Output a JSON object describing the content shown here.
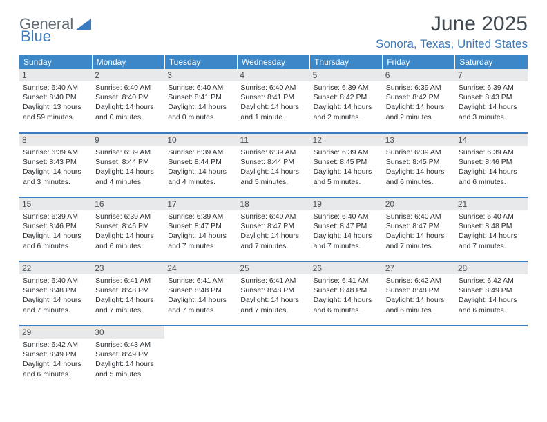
{
  "brand": {
    "part1": "General",
    "part2": "Blue"
  },
  "title": {
    "month": "June 2025",
    "location": "Sonora, Texas, United States"
  },
  "colors": {
    "header_bg": "#3b87c8",
    "accent": "#3b7bbf",
    "daynum_bg": "#e7e9eb",
    "text": "#2a2e32",
    "logo_gray": "#5f6a72"
  },
  "weekdays": [
    "Sunday",
    "Monday",
    "Tuesday",
    "Wednesday",
    "Thursday",
    "Friday",
    "Saturday"
  ],
  "weeks": [
    [
      {
        "n": "1",
        "sr": "6:40 AM",
        "ss": "8:40 PM",
        "dl": "13 hours and 59 minutes."
      },
      {
        "n": "2",
        "sr": "6:40 AM",
        "ss": "8:40 PM",
        "dl": "14 hours and 0 minutes."
      },
      {
        "n": "3",
        "sr": "6:40 AM",
        "ss": "8:41 PM",
        "dl": "14 hours and 0 minutes."
      },
      {
        "n": "4",
        "sr": "6:40 AM",
        "ss": "8:41 PM",
        "dl": "14 hours and 1 minute."
      },
      {
        "n": "5",
        "sr": "6:39 AM",
        "ss": "8:42 PM",
        "dl": "14 hours and 2 minutes."
      },
      {
        "n": "6",
        "sr": "6:39 AM",
        "ss": "8:42 PM",
        "dl": "14 hours and 2 minutes."
      },
      {
        "n": "7",
        "sr": "6:39 AM",
        "ss": "8:43 PM",
        "dl": "14 hours and 3 minutes."
      }
    ],
    [
      {
        "n": "8",
        "sr": "6:39 AM",
        "ss": "8:43 PM",
        "dl": "14 hours and 3 minutes."
      },
      {
        "n": "9",
        "sr": "6:39 AM",
        "ss": "8:44 PM",
        "dl": "14 hours and 4 minutes."
      },
      {
        "n": "10",
        "sr": "6:39 AM",
        "ss": "8:44 PM",
        "dl": "14 hours and 4 minutes."
      },
      {
        "n": "11",
        "sr": "6:39 AM",
        "ss": "8:44 PM",
        "dl": "14 hours and 5 minutes."
      },
      {
        "n": "12",
        "sr": "6:39 AM",
        "ss": "8:45 PM",
        "dl": "14 hours and 5 minutes."
      },
      {
        "n": "13",
        "sr": "6:39 AM",
        "ss": "8:45 PM",
        "dl": "14 hours and 6 minutes."
      },
      {
        "n": "14",
        "sr": "6:39 AM",
        "ss": "8:46 PM",
        "dl": "14 hours and 6 minutes."
      }
    ],
    [
      {
        "n": "15",
        "sr": "6:39 AM",
        "ss": "8:46 PM",
        "dl": "14 hours and 6 minutes."
      },
      {
        "n": "16",
        "sr": "6:39 AM",
        "ss": "8:46 PM",
        "dl": "14 hours and 6 minutes."
      },
      {
        "n": "17",
        "sr": "6:39 AM",
        "ss": "8:47 PM",
        "dl": "14 hours and 7 minutes."
      },
      {
        "n": "18",
        "sr": "6:40 AM",
        "ss": "8:47 PM",
        "dl": "14 hours and 7 minutes."
      },
      {
        "n": "19",
        "sr": "6:40 AM",
        "ss": "8:47 PM",
        "dl": "14 hours and 7 minutes."
      },
      {
        "n": "20",
        "sr": "6:40 AM",
        "ss": "8:47 PM",
        "dl": "14 hours and 7 minutes."
      },
      {
        "n": "21",
        "sr": "6:40 AM",
        "ss": "8:48 PM",
        "dl": "14 hours and 7 minutes."
      }
    ],
    [
      {
        "n": "22",
        "sr": "6:40 AM",
        "ss": "8:48 PM",
        "dl": "14 hours and 7 minutes."
      },
      {
        "n": "23",
        "sr": "6:41 AM",
        "ss": "8:48 PM",
        "dl": "14 hours and 7 minutes."
      },
      {
        "n": "24",
        "sr": "6:41 AM",
        "ss": "8:48 PM",
        "dl": "14 hours and 7 minutes."
      },
      {
        "n": "25",
        "sr": "6:41 AM",
        "ss": "8:48 PM",
        "dl": "14 hours and 7 minutes."
      },
      {
        "n": "26",
        "sr": "6:41 AM",
        "ss": "8:48 PM",
        "dl": "14 hours and 6 minutes."
      },
      {
        "n": "27",
        "sr": "6:42 AM",
        "ss": "8:48 PM",
        "dl": "14 hours and 6 minutes."
      },
      {
        "n": "28",
        "sr": "6:42 AM",
        "ss": "8:49 PM",
        "dl": "14 hours and 6 minutes."
      }
    ],
    [
      {
        "n": "29",
        "sr": "6:42 AM",
        "ss": "8:49 PM",
        "dl": "14 hours and 6 minutes."
      },
      {
        "n": "30",
        "sr": "6:43 AM",
        "ss": "8:49 PM",
        "dl": "14 hours and 5 minutes."
      },
      null,
      null,
      null,
      null,
      null
    ]
  ],
  "labels": {
    "sunrise": "Sunrise: ",
    "sunset": "Sunset: ",
    "daylight": "Daylight: "
  }
}
